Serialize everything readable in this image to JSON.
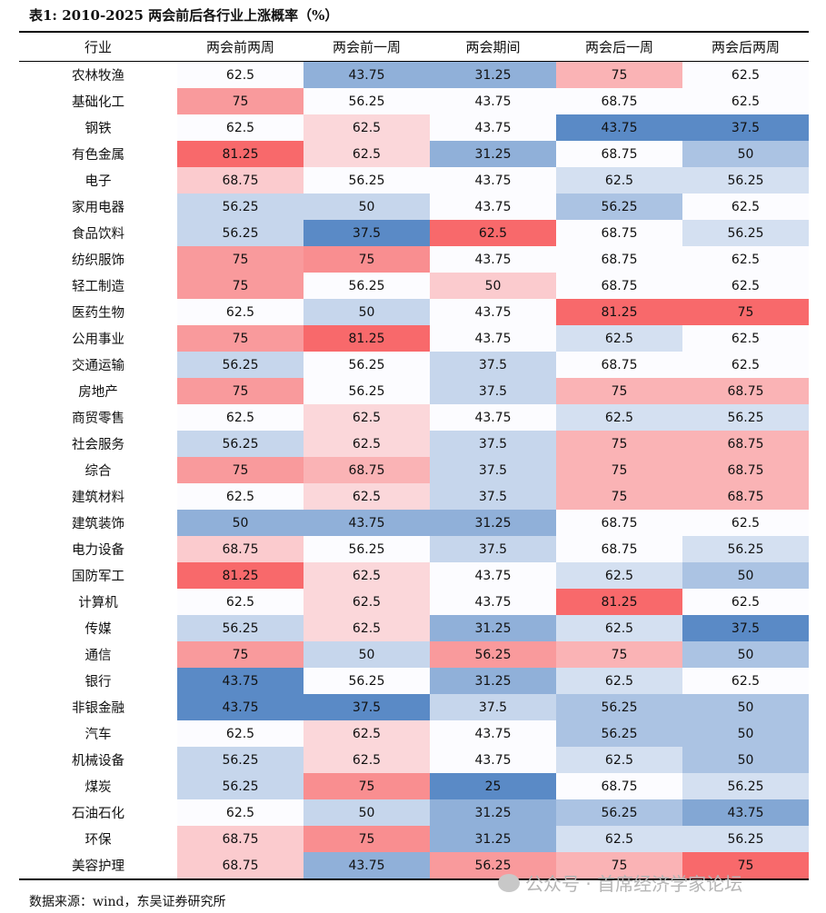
{
  "title": "表1: 2010-2025 两会前后各行业上涨概率（%）",
  "headers": [
    "行业",
    "两会前两周",
    "两会前一周",
    "两会期间",
    "两会后一周",
    "两会后两周"
  ],
  "rows": [
    [
      "农林牧渔",
      62.5,
      43.75,
      31.25,
      75,
      62.5
    ],
    [
      "基础化工",
      75,
      56.25,
      43.75,
      68.75,
      62.5
    ],
    [
      "钢铁",
      62.5,
      62.5,
      43.75,
      43.75,
      37.5
    ],
    [
      "有色金属",
      81.25,
      62.5,
      31.25,
      68.75,
      50
    ],
    [
      "电子",
      68.75,
      56.25,
      43.75,
      62.5,
      56.25
    ],
    [
      "家用电器",
      56.25,
      50,
      43.75,
      56.25,
      62.5
    ],
    [
      "食品饮料",
      56.25,
      37.5,
      62.5,
      68.75,
      56.25
    ],
    [
      "纺织服饰",
      75,
      75,
      43.75,
      68.75,
      62.5
    ],
    [
      "轻工制造",
      75,
      56.25,
      50,
      68.75,
      62.5
    ],
    [
      "医药生物",
      62.5,
      50,
      43.75,
      81.25,
      75
    ],
    [
      "公用事业",
      75,
      81.25,
      43.75,
      62.5,
      62.5
    ],
    [
      "交通运输",
      56.25,
      56.25,
      37.5,
      68.75,
      62.5
    ],
    [
      "房地产",
      75,
      56.25,
      37.5,
      75,
      68.75
    ],
    [
      "商贸零售",
      62.5,
      62.5,
      43.75,
      62.5,
      56.25
    ],
    [
      "社会服务",
      56.25,
      62.5,
      37.5,
      75,
      68.75
    ],
    [
      "综合",
      75,
      68.75,
      37.5,
      75,
      68.75
    ],
    [
      "建筑材料",
      62.5,
      62.5,
      37.5,
      75,
      68.75
    ],
    [
      "建筑装饰",
      50,
      43.75,
      31.25,
      68.75,
      62.5
    ],
    [
      "电力设备",
      68.75,
      56.25,
      37.5,
      68.75,
      56.25
    ],
    [
      "国防军工",
      81.25,
      62.5,
      43.75,
      62.5,
      50
    ],
    [
      "计算机",
      62.5,
      62.5,
      43.75,
      81.25,
      62.5
    ],
    [
      "传媒",
      56.25,
      62.5,
      31.25,
      62.5,
      37.5
    ],
    [
      "通信",
      75,
      50,
      56.25,
      75,
      50
    ],
    [
      "银行",
      43.75,
      56.25,
      31.25,
      62.5,
      62.5
    ],
    [
      "非银金融",
      43.75,
      37.5,
      37.5,
      56.25,
      50
    ],
    [
      "汽车",
      62.5,
      62.5,
      43.75,
      56.25,
      50
    ],
    [
      "机械设备",
      56.25,
      62.5,
      43.75,
      62.5,
      50
    ],
    [
      "煤炭",
      56.25,
      75,
      25,
      68.75,
      56.25
    ],
    [
      "石油石化",
      62.5,
      50,
      31.25,
      56.25,
      43.75
    ],
    [
      "环保",
      68.75,
      75,
      31.25,
      62.5,
      56.25
    ],
    [
      "美容护理",
      68.75,
      43.75,
      56.25,
      75,
      75
    ]
  ],
  "source": "数据来源：wind，东吴证券研究所",
  "watermark": "公众号 · 首席经济学家论坛",
  "colors": {
    "high": "#f8696b",
    "mid": "#fcfcff",
    "low": "#5a8ac6"
  }
}
